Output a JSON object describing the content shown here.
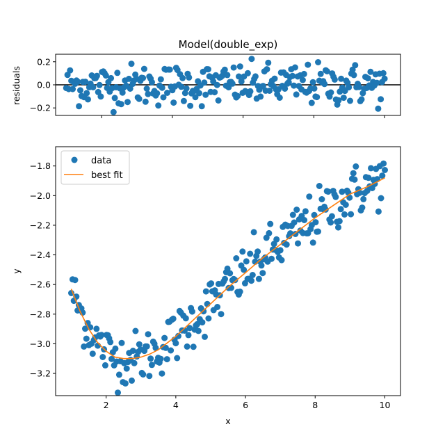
{
  "colors": {
    "data": "#1f77b4",
    "fit": "#ff7f0e",
    "zero_line": "#000000"
  },
  "chart_data": [
    {
      "type": "scatter",
      "title": "Model(double_exp)",
      "xlabel": "",
      "ylabel": "residuals",
      "xlim": [
        0.7,
        10.45
      ],
      "ylim": [
        -0.265,
        0.265
      ],
      "xticks": [
        2,
        4,
        6,
        8,
        10
      ],
      "xtick_labels_visible": false,
      "yticks": [
        -0.2,
        0.0,
        0.2
      ],
      "ytick_labels": [
        "−0.2",
        "0.0",
        "0.2"
      ],
      "reference_line": {
        "y": 0.0
      },
      "grid": false
    },
    {
      "type": "scatter",
      "title": "",
      "xlabel": "x",
      "ylabel": "y",
      "xlim": [
        0.55,
        10.45
      ],
      "ylim": [
        -3.35,
        -1.67
      ],
      "xticks": [
        2,
        4,
        6,
        8,
        10
      ],
      "xtick_labels": [
        "2",
        "4",
        "6",
        "8",
        "10"
      ],
      "yticks": [
        -3.2,
        -3.0,
        -2.8,
        -2.6,
        -2.4,
        -2.2,
        -2.0,
        -1.8
      ],
      "ytick_labels": [
        "−3.2",
        "−3.0",
        "−2.8",
        "−2.6",
        "−2.4",
        "−2.2",
        "−2.0",
        "−1.8"
      ],
      "legend": {
        "position": "top-left",
        "entries": [
          "data",
          "best fit"
        ]
      },
      "grid": false,
      "series": [
        {
          "name": "best fit",
          "kind": "line",
          "x": [
            1.0,
            1.25,
            1.5,
            1.75,
            2.0,
            2.25,
            2.5,
            2.75,
            3.0,
            3.25,
            3.5,
            4.0,
            4.5,
            5.0,
            5.5,
            6.0,
            6.5,
            7.0,
            7.5,
            8.0,
            8.5,
            9.0,
            9.5,
            10.0
          ],
          "y": [
            -2.63,
            -2.78,
            -2.9,
            -2.99,
            -3.05,
            -3.09,
            -3.1,
            -3.1,
            -3.09,
            -3.07,
            -3.04,
            -2.95,
            -2.84,
            -2.73,
            -2.62,
            -2.52,
            -2.42,
            -2.33,
            -2.24,
            -2.15,
            -2.07,
            -1.99,
            -1.94,
            -1.88
          ]
        }
      ]
    }
  ]
}
